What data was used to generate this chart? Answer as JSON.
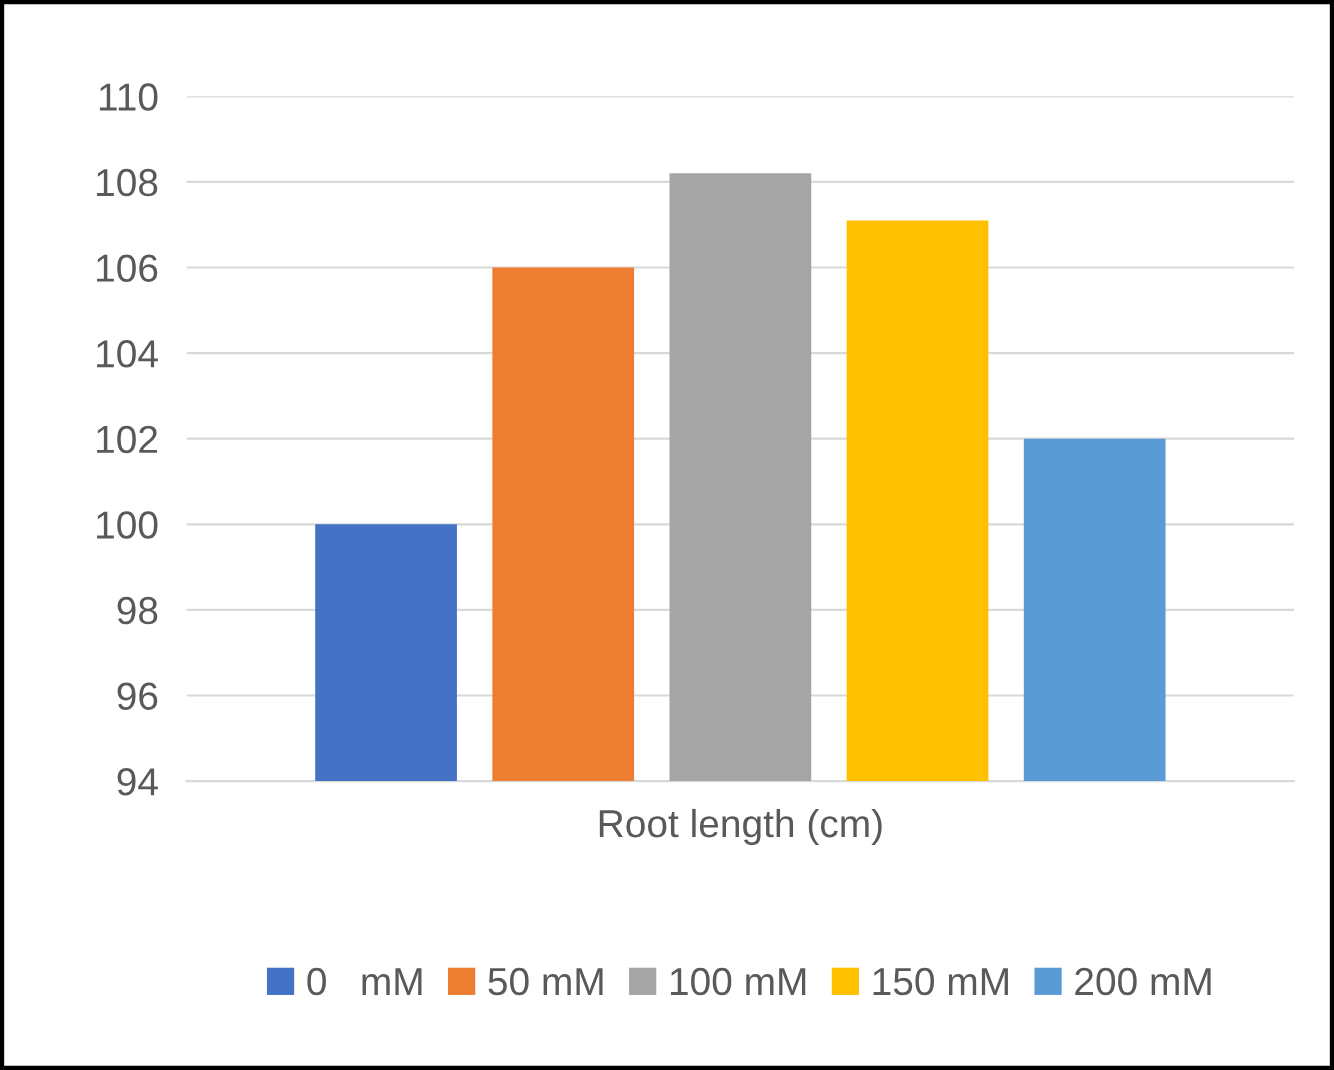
{
  "chart_data": {
    "type": "bar",
    "categories": [
      "Root length (cm)"
    ],
    "series": [
      {
        "name": "0   mM",
        "color": "#4472c4",
        "values": [
          100
        ]
      },
      {
        "name": "50 mM",
        "color": "#ed7d31",
        "values": [
          106
        ]
      },
      {
        "name": "100 mM",
        "color": "#a5a5a5",
        "values": [
          108.2
        ]
      },
      {
        "name": "150 mM",
        "color": "#ffc000",
        "values": [
          107.1
        ]
      },
      {
        "name": "200 mM",
        "color": "#5b9bd5",
        "values": [
          102
        ]
      }
    ],
    "ylim": [
      94,
      110
    ],
    "yticks": [
      94,
      96,
      98,
      100,
      102,
      104,
      106,
      108,
      110
    ],
    "grid": "y",
    "legend": "bottom"
  }
}
